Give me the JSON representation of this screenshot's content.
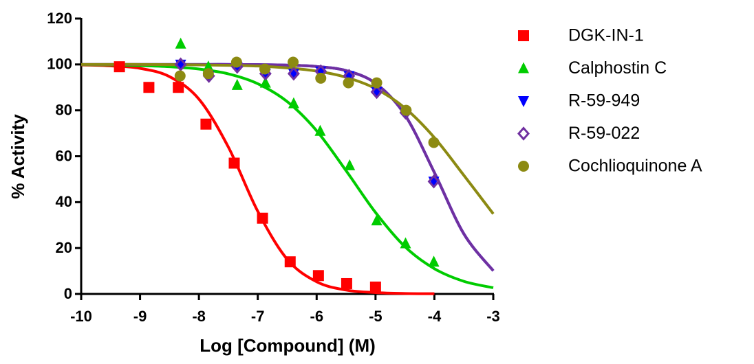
{
  "chart_data": {
    "type": "dose-response",
    "xlabel": "Log [Compound] (M)",
    "ylabel": "% Activity",
    "xlim": [
      -10,
      -3
    ],
    "xticks": [
      -10,
      -9,
      -8,
      -7,
      -6,
      -5,
      -4,
      -3
    ],
    "ylim": [
      0,
      120
    ],
    "yticks": [
      0,
      20,
      40,
      60,
      80,
      100,
      120
    ],
    "curve_x": [
      -10,
      -9.5,
      -9,
      -8.5,
      -8,
      -7.5,
      -7,
      -6.5,
      -6,
      -5.5,
      -5,
      -4.5,
      -4,
      -3.5,
      -3
    ],
    "series": [
      {
        "name": "DGK-IN-1",
        "color": "#ff0000",
        "marker": "square",
        "x": [
          -9.35,
          -8.85,
          -8.35,
          -7.88,
          -7.4,
          -6.92,
          -6.45,
          -5.97,
          -5.49,
          -5.0
        ],
        "values": [
          99,
          90,
          90,
          74,
          57,
          33,
          14,
          8,
          4.5,
          3
        ],
        "curve_values": [
          99.8,
          99.4,
          98.3,
          94.7,
          84.9,
          64.0,
          36.0,
          15.1,
          5.3,
          1.7,
          0.6,
          0.2,
          0.1,
          null,
          null
        ]
      },
      {
        "name": "Calphostin C",
        "color": "#00cc00",
        "marker": "triangle",
        "x": [
          -8.31,
          -7.84,
          -7.35,
          -6.87,
          -6.39,
          -5.94,
          -5.44,
          -4.98,
          -4.49,
          -4.01
        ],
        "values": [
          109,
          99,
          91,
          92,
          83,
          71,
          56,
          32,
          22,
          14
        ],
        "curve_values": [
          99.9,
          99.8,
          99.5,
          99.0,
          98.0,
          95.9,
          91.6,
          83.8,
          71.1,
          53.7,
          35.5,
          20.6,
          11.0,
          5.5,
          2.7
        ]
      },
      {
        "name": "R-59-949",
        "color": "#0000ff",
        "marker": "triangle-down",
        "x": [
          -8.31,
          -7.83,
          -7.35,
          -6.87,
          -6.39,
          -5.93,
          -5.45,
          -4.98,
          -4.49,
          -4.01
        ],
        "values": [
          100,
          95,
          99,
          96,
          96,
          97,
          95,
          88,
          79,
          49
        ],
        "curve_values": [
          100,
          100,
          100,
          100,
          100,
          100,
          99.9,
          99.7,
          99.1,
          97.3,
          91.8,
          78.0,
          52.9,
          26.2,
          10.1
        ]
      },
      {
        "name": "R-59-022",
        "color": "#7030a0",
        "marker": "diamond-open",
        "x": [
          -8.31,
          -7.83,
          -7.35,
          -6.87,
          -6.39,
          -5.93,
          -5.45,
          -4.98,
          -4.49,
          -4.01
        ],
        "values": [
          100,
          95,
          99,
          96,
          96,
          97,
          95,
          88,
          79,
          49
        ],
        "curve_values": [
          100,
          100,
          100,
          100,
          100,
          100,
          99.9,
          99.7,
          99.1,
          97.3,
          91.8,
          78.0,
          52.9,
          26.2,
          10.1
        ]
      },
      {
        "name": "Cochlioquinone A",
        "color": "#8c8a12",
        "marker": "circle",
        "x": [
          -8.32,
          -7.84,
          -7.36,
          -6.88,
          -6.4,
          -5.93,
          -5.46,
          -4.98,
          -4.48,
          -4.01
        ],
        "values": [
          95,
          96,
          101,
          98,
          101,
          94,
          92,
          92,
          80,
          66
        ],
        "curve_values": [
          100,
          100,
          100,
          99.9,
          99.8,
          99.6,
          99.3,
          98.5,
          97.1,
          94.4,
          89.5,
          81.0,
          68.1,
          51.7,
          34.9
        ]
      }
    ]
  }
}
